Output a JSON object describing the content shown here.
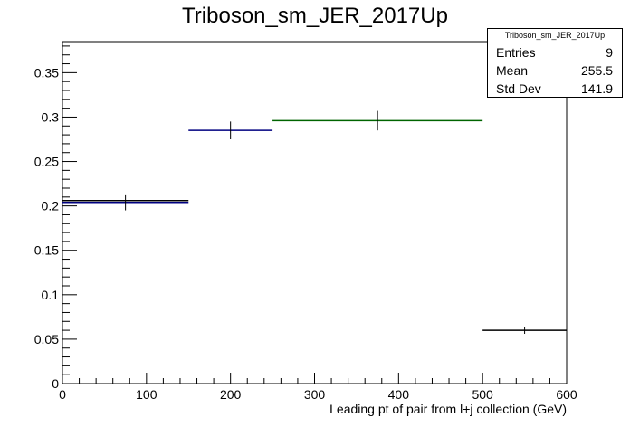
{
  "chart_data": {
    "type": "histogram",
    "title": "Triboson_sm_JER_2017Up",
    "xlabel": "Leading pt of pair from l+j collection (GeV)",
    "ylabel": "",
    "xlim": [
      0,
      600
    ],
    "ylim": [
      0,
      0.385
    ],
    "x_ticks": [
      0,
      100,
      200,
      300,
      400,
      500,
      600
    ],
    "y_ticks": [
      0,
      0.05,
      0.1,
      0.15,
      0.2,
      0.25,
      0.3,
      0.35
    ],
    "x_tick_labels": [
      "0",
      "100",
      "200",
      "300",
      "400",
      "500",
      "600"
    ],
    "y_tick_labels": [
      "0",
      "0.05",
      "0.1",
      "0.15",
      "0.2",
      "0.25",
      "0.3",
      "0.35"
    ],
    "grid": false,
    "series": [
      {
        "bins": [
          {
            "xlow": 0,
            "xhigh": 150,
            "y": 0.204,
            "err": 0.009,
            "color": "#000080"
          },
          {
            "xlow": 0,
            "xhigh": 150,
            "y": 0.206,
            "err": 0.0,
            "color": "#000000"
          },
          {
            "xlow": 150,
            "xhigh": 250,
            "y": 0.285,
            "err": 0.01,
            "color": "#000080"
          },
          {
            "xlow": 250,
            "xhigh": 500,
            "y": 0.296,
            "err": 0.011,
            "color": "#006400"
          },
          {
            "xlow": 500,
            "xhigh": 600,
            "y": 0.06,
            "err": 0.004,
            "color": "#000000"
          }
        ]
      }
    ],
    "stats": {
      "name": "Triboson_sm_JER_2017Up",
      "rows": [
        {
          "label": "Entries",
          "value": "9"
        },
        {
          "label": "Mean",
          "value": "255.5"
        },
        {
          "label": "Std Dev",
          "value": "141.9"
        }
      ]
    }
  }
}
